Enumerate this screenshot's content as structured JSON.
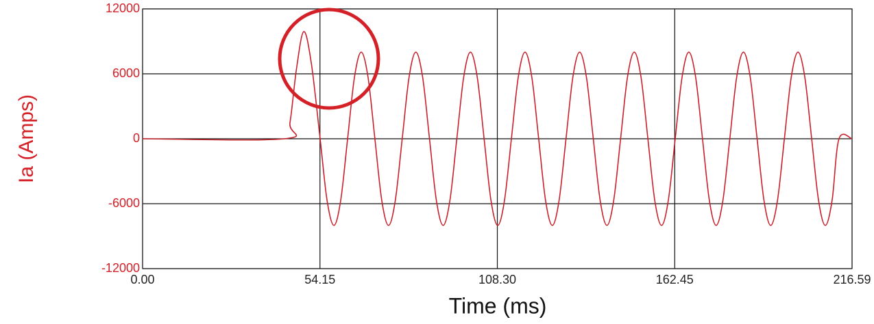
{
  "chart_data": {
    "type": "line",
    "xlabel": "Time (ms)",
    "ylabel": "Ia (Amps)",
    "ylabel_color": "#d42027",
    "xlim": [
      0,
      216.59
    ],
    "ylim": [
      -12000,
      12000
    ],
    "xticks": [
      {
        "value": 0,
        "label": "0.00"
      },
      54.15,
      {
        "value": 108.3,
        "label": "108.30"
      },
      162.45,
      216.59
    ],
    "yticks": [
      -12000,
      -6000,
      0,
      6000,
      12000
    ],
    "grid": true,
    "x": [
      0,
      43.3,
      45.0,
      47.0,
      49.2,
      51.5,
      54.2,
      56.3,
      58.42,
      60.5,
      62.59,
      64.67,
      66.75,
      68.84,
      70.92,
      73.0,
      75.09,
      77.17,
      79.26,
      81.34,
      83.42,
      85.51,
      87.59,
      89.67,
      91.76,
      93.84,
      95.93,
      98.01,
      100.09,
      102.18,
      104.26,
      106.34,
      108.42,
      110.5,
      112.59,
      114.67,
      116.75,
      118.84,
      120.92,
      123.0,
      125.09,
      127.17,
      129.26,
      131.34,
      133.42,
      135.51,
      137.59,
      139.67,
      141.76,
      143.84,
      145.93,
      148.01,
      150.09,
      152.18,
      154.26,
      156.34,
      158.43,
      160.51,
      162.6,
      164.68,
      166.76,
      168.85,
      170.93,
      173.01,
      175.1,
      177.18,
      179.27,
      181.35,
      183.43,
      185.52,
      187.6,
      189.68,
      191.76,
      193.84,
      195.93,
      198.01,
      200.09,
      202.18,
      204.26,
      206.34,
      208.43,
      210.51,
      212.6,
      216.59
    ],
    "series": [
      {
        "color": "#c8202a",
        "values": [
          0,
          0,
          1500,
          6500,
          9900,
          7000,
          0,
          -5657,
          -8000,
          -5657,
          0,
          5657,
          8000,
          5657,
          0,
          -5657,
          -8000,
          -5657,
          0,
          5657,
          8000,
          5657,
          0,
          -5657,
          -8000,
          -5657,
          0,
          5657,
          8000,
          5657,
          0,
          -5657,
          -8000,
          -5657,
          0,
          5657,
          8000,
          5657,
          0,
          -5657,
          -8000,
          -5657,
          0,
          5657,
          8000,
          5657,
          0,
          -5657,
          -8000,
          -5657,
          0,
          5657,
          8000,
          5657,
          0,
          -5657,
          -8000,
          -5657,
          0,
          5657,
          8000,
          5657,
          0,
          -5657,
          -8000,
          -5657,
          0,
          5657,
          8000,
          5657,
          0,
          -5657,
          -8000,
          -5657,
          0,
          5657,
          8000,
          5657,
          0,
          -5657,
          -8000,
          -5657,
          0,
          0
        ]
      }
    ]
  }
}
